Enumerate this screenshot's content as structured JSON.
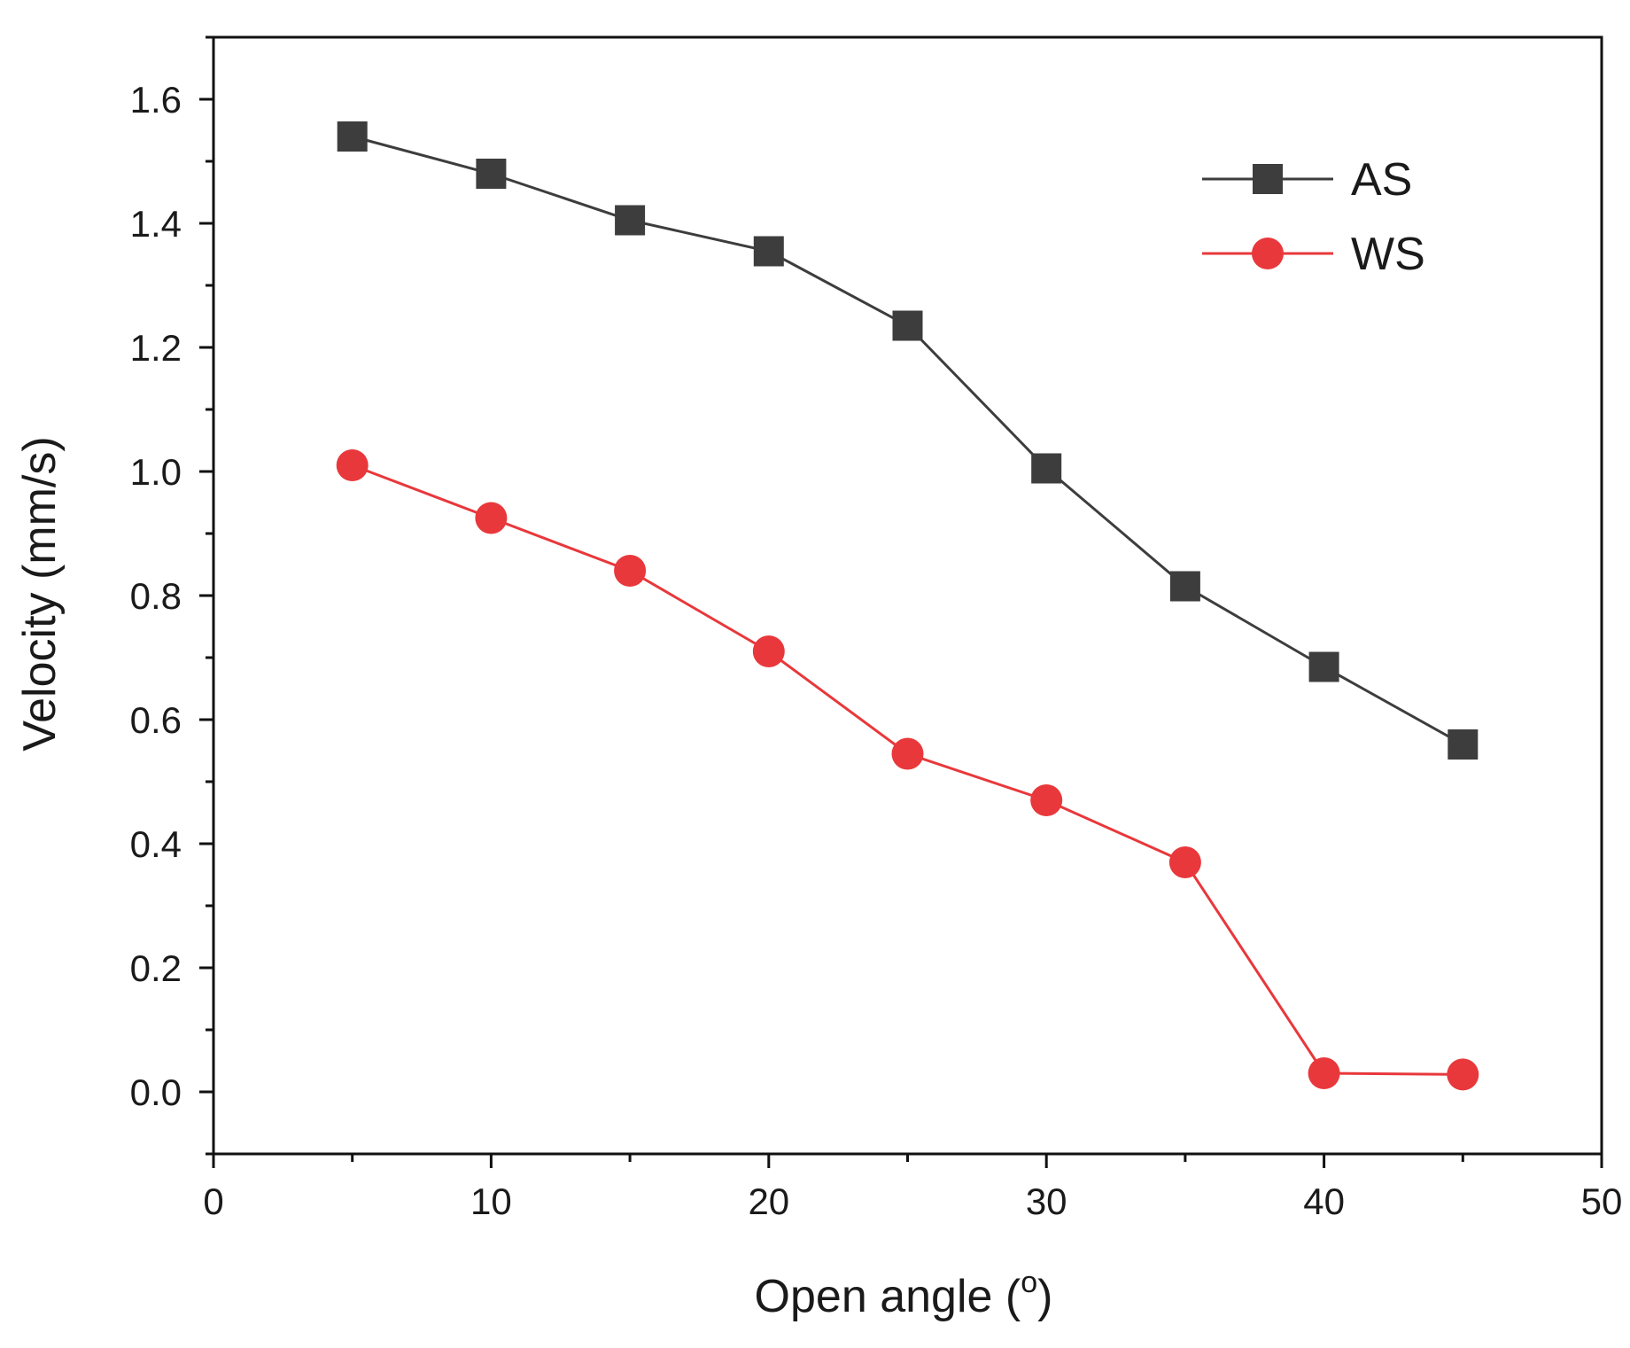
{
  "chart_data": {
    "type": "line",
    "title": "",
    "xlabel": "Open angle (",
    "xlabel_superscript": "o",
    "xlabel_suffix": ")",
    "ylabel": "Velocity (mm/s)",
    "xlim": [
      0,
      50
    ],
    "ylim": [
      -0.1,
      1.7
    ],
    "x_ticks": [
      0,
      10,
      20,
      30,
      40,
      50
    ],
    "x_tick_labels": [
      "0",
      "10",
      "20",
      "30",
      "40",
      "50"
    ],
    "y_ticks": [
      0.0,
      0.2,
      0.4,
      0.6,
      0.8,
      1.0,
      1.2,
      1.4,
      1.6
    ],
    "y_tick_labels": [
      "0.0",
      "0.2",
      "0.4",
      "0.6",
      "0.8",
      "1.0",
      "1.2",
      "1.4",
      "1.6"
    ],
    "grid": false,
    "legend_position": "top-right",
    "x": [
      5,
      10,
      15,
      20,
      25,
      30,
      35,
      40,
      45
    ],
    "series": [
      {
        "name": "AS",
        "marker": "square",
        "color": "#3d3d3d",
        "values": [
          1.54,
          1.48,
          1.405,
          1.355,
          1.235,
          1.005,
          0.815,
          0.685,
          0.56
        ]
      },
      {
        "name": "WS",
        "marker": "circle",
        "color": "#e8383b",
        "values": [
          1.01,
          0.925,
          0.84,
          0.71,
          0.545,
          0.47,
          0.37,
          0.03,
          0.028
        ]
      }
    ]
  }
}
